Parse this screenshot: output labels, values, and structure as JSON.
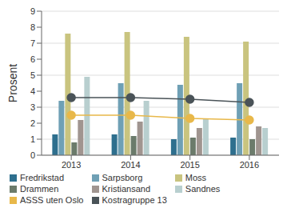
{
  "chart_data": {
    "type": "bar",
    "y_label": "Prosent",
    "categories": [
      "2013",
      "2014",
      "2015",
      "2016"
    ],
    "series": [
      {
        "name": "Fredrikstad",
        "color": "#2e6f8e",
        "values": [
          1.3,
          1.3,
          1.0,
          1.1
        ]
      },
      {
        "name": "Sarpsborg",
        "color": "#6fa0b5",
        "values": [
          3.4,
          4.5,
          4.4,
          4.5
        ]
      },
      {
        "name": "Moss",
        "color": "#c9c47f",
        "values": [
          7.6,
          7.7,
          7.4,
          7.1
        ]
      },
      {
        "name": "Drammen",
        "color": "#6b7b6b",
        "values": [
          0.8,
          1.2,
          1.1,
          1.0
        ]
      },
      {
        "name": "Kristiansand",
        "color": "#a09590",
        "values": [
          2.2,
          2.1,
          1.7,
          1.8
        ]
      },
      {
        "name": "Sandnes",
        "color": "#b8cfcf",
        "values": [
          4.9,
          3.4,
          2.3,
          1.7
        ]
      },
      {
        "name": "ASSS uten Oslo",
        "color": "#e8b84a",
        "type": "line",
        "marker": "circle",
        "values": [
          2.5,
          2.5,
          2.3,
          2.2
        ]
      },
      {
        "name": "Kostragruppe 13",
        "color": "#4a5358",
        "type": "line",
        "marker": "circle",
        "values": [
          3.6,
          3.6,
          3.5,
          3.3
        ]
      }
    ],
    "ylim": [
      0,
      9
    ],
    "yticks": [
      0,
      1,
      2,
      3,
      4,
      5,
      6,
      7,
      8,
      9
    ],
    "grid": true,
    "legend": "bottom"
  }
}
